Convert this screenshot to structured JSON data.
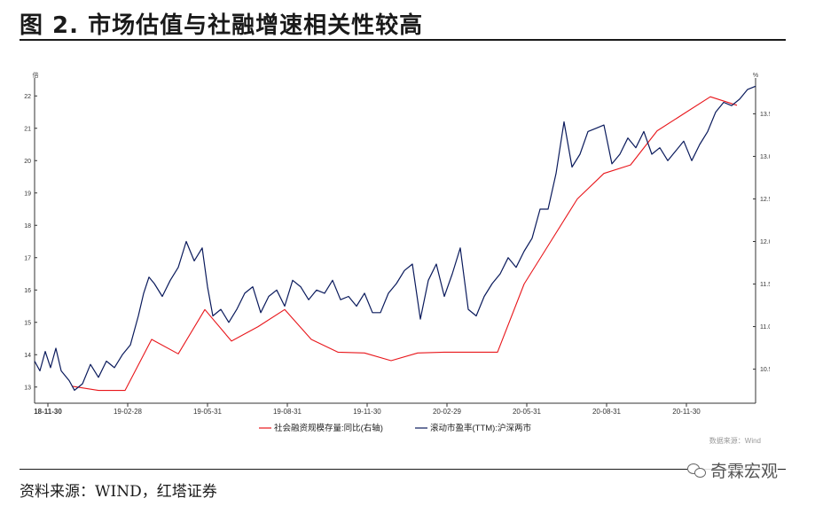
{
  "figure": {
    "title": "图 2. 市场估值与社融增速相关性较高",
    "source": "资料来源：WIND，红塔证券",
    "watermark": "奇霖宏观",
    "chart_source": "数据来源：Wind"
  },
  "colors": {
    "pe": "#0a1a5c",
    "social": "#e8161b",
    "axis": "#333333",
    "rule": "#1a1a1a"
  },
  "chart_data": {
    "type": "line",
    "left_unit": "倍",
    "right_unit": "%",
    "left_ylim": [
      12.5,
      22.5
    ],
    "left_ticks": [
      "13",
      "14",
      "15",
      "16",
      "17",
      "18",
      "19",
      "20",
      "21",
      "22"
    ],
    "right_ylim": [
      10.1,
      13.9
    ],
    "right_ticks": [
      "10.5",
      "11.0",
      "11.5",
      "12.0",
      "12.5",
      "13.0",
      "13.5"
    ],
    "x_labels": [
      "18-11-30",
      "19-02-28",
      "19-05-31",
      "19-08-31",
      "19-11-30",
      "20-02-29",
      "20-05-31",
      "20-08-31",
      "20-11-30"
    ],
    "x_label_months": [
      0,
      3,
      6,
      9,
      12,
      15,
      18,
      21,
      24
    ],
    "x_month_range": [
      -0.5,
      26.6
    ],
    "legend": [
      "社会融资规模存量:同比(右轴)",
      "滚动市盈率(TTM):沪深两市"
    ],
    "series": [
      {
        "name": "社会融资规模存量:同比(右轴)",
        "axis": "right",
        "x_month": [
          0.9,
          1.9,
          2.9,
          3.9,
          4.9,
          5.9,
          6.9,
          7.9,
          8.9,
          9.9,
          10.9,
          11.9,
          12.9,
          13.9,
          14.9,
          15.9,
          16.9,
          17.9,
          18.9,
          19.9,
          20.9,
          21.9,
          22.9,
          23.9,
          24.9,
          25.9
        ],
        "values": [
          10.3,
          10.25,
          10.25,
          10.85,
          10.68,
          11.2,
          10.83,
          11.0,
          11.2,
          10.85,
          10.7,
          10.69,
          10.6,
          10.69,
          10.7,
          10.7,
          10.7,
          11.5,
          12.0,
          12.5,
          12.8,
          12.9,
          13.3,
          13.5,
          13.7,
          13.6
        ]
      },
      {
        "name": "滚动市盈率(TTM):沪深两市",
        "axis": "left",
        "x_month": [
          -0.5,
          -0.3,
          -0.1,
          0.1,
          0.3,
          0.5,
          0.8,
          1.0,
          1.3,
          1.6,
          1.9,
          2.2,
          2.5,
          2.8,
          3.1,
          3.4,
          3.6,
          3.8,
          4.0,
          4.3,
          4.6,
          4.9,
          5.2,
          5.5,
          5.8,
          6.0,
          6.2,
          6.5,
          6.8,
          7.1,
          7.4,
          7.7,
          8.0,
          8.3,
          8.6,
          8.9,
          9.2,
          9.5,
          9.8,
          10.1,
          10.4,
          10.7,
          11.0,
          11.3,
          11.6,
          11.9,
          12.2,
          12.5,
          12.8,
          13.1,
          13.4,
          13.7,
          14.0,
          14.3,
          14.6,
          14.9,
          15.2,
          15.5,
          15.8,
          16.1,
          16.4,
          16.7,
          17.0,
          17.3,
          17.6,
          17.9,
          18.2,
          18.5,
          18.8,
          19.1,
          19.4,
          19.7,
          20.0,
          20.3,
          20.6,
          20.9,
          21.2,
          21.5,
          21.8,
          22.1,
          22.4,
          22.7,
          23.0,
          23.3,
          23.6,
          23.9,
          24.2,
          24.5,
          24.8,
          25.1,
          25.4,
          25.7,
          26.0,
          26.3,
          26.6
        ],
        "values": [
          13.8,
          13.5,
          14.1,
          13.6,
          14.2,
          13.5,
          13.2,
          12.9,
          13.1,
          13.7,
          13.3,
          13.8,
          13.6,
          14.0,
          14.3,
          15.2,
          15.9,
          16.4,
          16.2,
          15.8,
          16.3,
          16.7,
          17.5,
          16.9,
          17.3,
          16.1,
          15.2,
          15.4,
          15.0,
          15.4,
          15.9,
          16.1,
          15.3,
          15.8,
          16.0,
          15.5,
          16.3,
          16.1,
          15.7,
          16.0,
          15.9,
          16.3,
          15.7,
          15.8,
          15.5,
          15.9,
          15.3,
          15.3,
          15.9,
          16.2,
          16.6,
          16.8,
          15.1,
          16.3,
          16.8,
          15.8,
          16.5,
          17.3,
          15.4,
          15.2,
          15.8,
          16.2,
          16.5,
          17.0,
          16.7,
          17.2,
          17.6,
          18.5,
          18.5,
          19.6,
          21.2,
          19.8,
          20.2,
          20.9,
          21.0,
          21.1,
          19.9,
          20.2,
          20.7,
          20.4,
          20.9,
          20.2,
          20.4,
          20.0,
          20.3,
          20.6,
          20.0,
          20.5,
          20.9,
          21.5,
          21.8,
          21.7,
          21.9,
          22.2,
          22.3
        ]
      }
    ]
  }
}
